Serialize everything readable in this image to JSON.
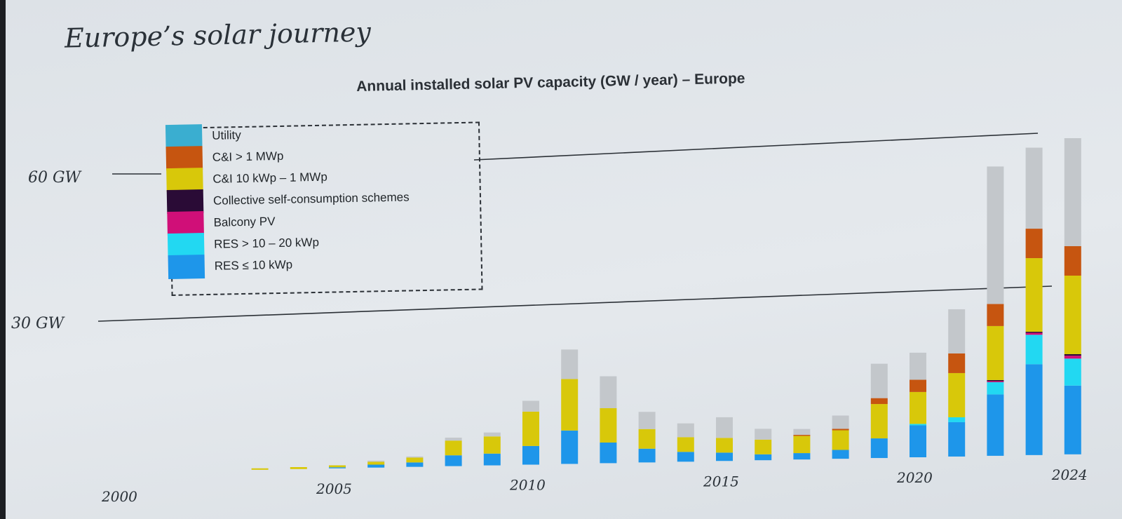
{
  "slide": {
    "title": "Europe’s solar journey"
  },
  "chart_data": {
    "type": "bar",
    "stacked": true,
    "title": "Annual installed solar PV capacity (GW / year) – Europe",
    "xlabel": "",
    "ylabel": "",
    "ylim": [
      0,
      66
    ],
    "reference_lines": [
      {
        "value": 60,
        "label": "60 GW"
      },
      {
        "value": 30,
        "label": "30 GW"
      }
    ],
    "categories": [
      "2000",
      "2001",
      "2002",
      "2003",
      "2004",
      "2005",
      "2006",
      "2007",
      "2008",
      "2009",
      "2010",
      "2011",
      "2012",
      "2013",
      "2014",
      "2015",
      "2016",
      "2017",
      "2018",
      "2019",
      "2020",
      "2021",
      "2022",
      "2023",
      "2024"
    ],
    "x_tick_labels": [
      "2000",
      "2005",
      "2010",
      "2015",
      "2020",
      "2024"
    ],
    "legend_position": "top-left",
    "series": [
      {
        "name": "RES ≤ 10 kWp",
        "color": "#1e96ea",
        "values": [
          0,
          0,
          0,
          0,
          0,
          0.2,
          0.6,
          0.9,
          2.2,
          2.4,
          3.8,
          6.8,
          4.2,
          2.8,
          2.0,
          1.7,
          1.2,
          1.3,
          1.8,
          4.0,
          6.5,
          7.0,
          12.5,
          18.5,
          14.0
        ]
      },
      {
        "name": "RES > 10 – 20 kWp",
        "color": "#22d8f2",
        "values": [
          0,
          0,
          0,
          0,
          0,
          0,
          0,
          0,
          0,
          0,
          0,
          0,
          0,
          0,
          0,
          0,
          0,
          0,
          0,
          0,
          0.3,
          1.0,
          2.5,
          6.0,
          5.5
        ]
      },
      {
        "name": "Balcony PV",
        "color": "#d00f78",
        "values": [
          0,
          0,
          0,
          0,
          0,
          0,
          0,
          0,
          0,
          0,
          0,
          0,
          0,
          0,
          0,
          0,
          0,
          0,
          0,
          0,
          0,
          0,
          0.2,
          0.4,
          0.6
        ]
      },
      {
        "name": "Collective self-consumption schemes",
        "color": "#2a0b36",
        "values": [
          0,
          0,
          0,
          0,
          0,
          0,
          0,
          0,
          0,
          0,
          0,
          0,
          0,
          0,
          0,
          0,
          0,
          0,
          0,
          0,
          0,
          0,
          0.2,
          0.2,
          0.3
        ]
      },
      {
        "name": "C&I 10 kWp – 1 MWp",
        "color": "#d8c80a",
        "values": [
          0,
          0,
          0,
          0.3,
          0.4,
          0.4,
          0.6,
          1.0,
          3.0,
          3.5,
          7.0,
          10.5,
          7.0,
          4.0,
          3.0,
          3.0,
          3.0,
          3.5,
          4.0,
          7.0,
          6.5,
          9.0,
          11.0,
          15.0,
          16.0
        ]
      },
      {
        "name": "C&I > 1 MWp",
        "color": "#c65510",
        "values": [
          0,
          0,
          0,
          0,
          0,
          0,
          0,
          0,
          0,
          0,
          0,
          0,
          0,
          0,
          0,
          0,
          0,
          0.2,
          0.3,
          1.2,
          2.5,
          4.0,
          4.5,
          6.0,
          6.0
        ]
      },
      {
        "name": "Utility",
        "color": "#c3c7cb",
        "values": [
          0,
          0,
          0,
          0,
          0,
          0,
          0.1,
          0.2,
          0.6,
          0.8,
          2.2,
          6.0,
          6.5,
          3.5,
          2.8,
          4.2,
          2.2,
          1.2,
          2.7,
          7.0,
          5.5,
          9.0,
          28.0,
          16.5,
          22.0
        ]
      }
    ]
  }
}
